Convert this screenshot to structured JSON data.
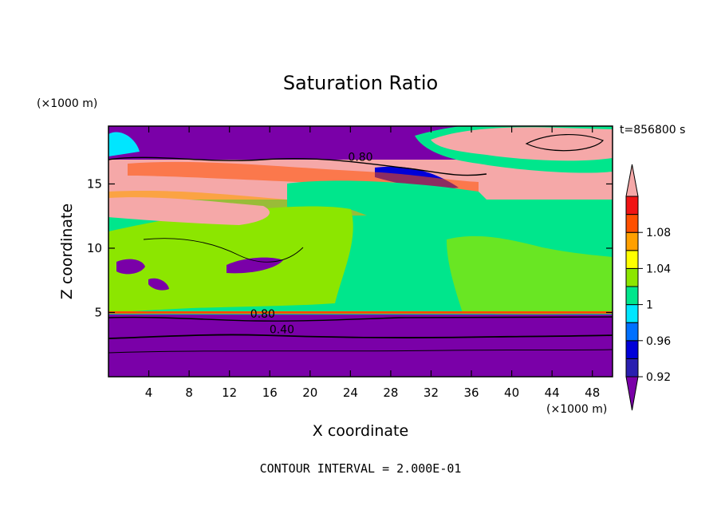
{
  "chart_data": {
    "type": "heatmap",
    "title": "Saturation Ratio",
    "time_label": "t=856800 s",
    "xlabel": "X coordinate",
    "ylabel": "Z coordinate",
    "x_unit": "(×1000 m)",
    "y_unit": "(×1000 m)",
    "xlim": [
      0,
      50
    ],
    "ylim": [
      0,
      19.5
    ],
    "x_ticks": [
      4,
      8,
      12,
      16,
      20,
      24,
      28,
      32,
      36,
      40,
      44,
      48
    ],
    "y_ticks": [
      5,
      10,
      15
    ],
    "footer": "CONTOUR INTERVAL = 2.000E-01",
    "contour_labels": [
      {
        "text": "0.80",
        "x": 25.0,
        "z": 16.8
      },
      {
        "text": "0.80",
        "x": 15.3,
        "z": 4.6
      },
      {
        "text": "0.40",
        "x": 17.2,
        "z": 3.4
      }
    ],
    "colorbar": {
      "levels": [
        0.92,
        0.94,
        0.96,
        0.98,
        1.0,
        1.02,
        1.04,
        1.06,
        1.08,
        1.1
      ],
      "tick_labels": [
        "0.92",
        "0.96",
        "1",
        "1.04",
        "1.08"
      ],
      "colors": [
        "#7a00a8",
        "#2a1fb0",
        "#0000d8",
        "#0070ff",
        "#00e6ff",
        "#00e68c",
        "#8ce600",
        "#ffff00",
        "#ffa000",
        "#ff5000",
        "#f01414",
        "#f5a8a8"
      ]
    }
  }
}
